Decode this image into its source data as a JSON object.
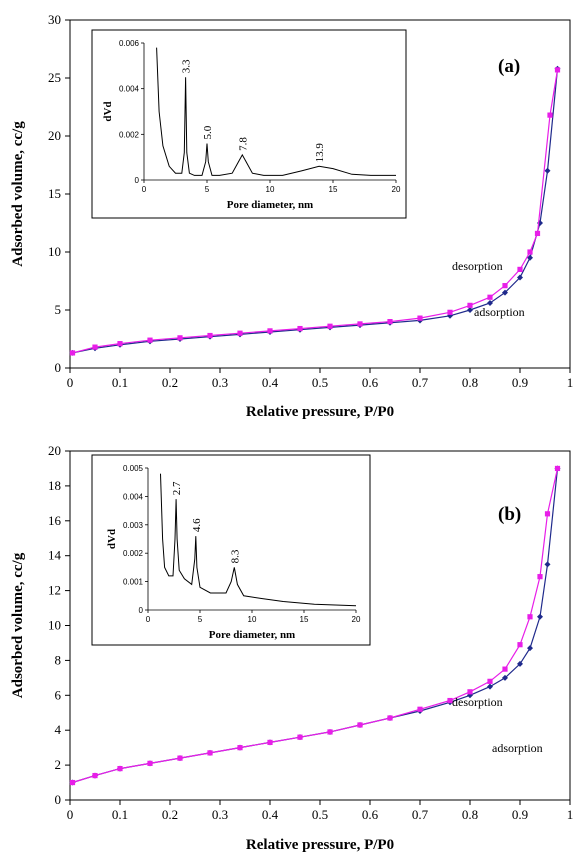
{
  "chart_data": [
    {
      "type": "line",
      "panel_label": "(a)",
      "xlabel": "Relative pressure, P/P0",
      "ylabel": "Adsorbed volume, cc/g",
      "xlim": [
        0,
        1.0
      ],
      "ylim": [
        0,
        30
      ],
      "xticks": [
        0,
        0.1,
        0.2,
        0.3,
        0.4,
        0.5,
        0.6,
        0.7,
        0.8,
        0.9,
        1
      ],
      "yticks": [
        0,
        5,
        10,
        15,
        20,
        25,
        30
      ],
      "grid": false,
      "series": [
        {
          "name": "adsorption",
          "color": "#1f2a8c",
          "x": [
            0.005,
            0.05,
            0.1,
            0.16,
            0.22,
            0.28,
            0.34,
            0.4,
            0.46,
            0.52,
            0.58,
            0.64,
            0.7,
            0.76,
            0.8,
            0.84,
            0.87,
            0.9,
            0.92,
            0.94,
            0.955,
            0.975
          ],
          "y": [
            1.3,
            1.7,
            2.0,
            2.3,
            2.5,
            2.7,
            2.9,
            3.1,
            3.3,
            3.5,
            3.7,
            3.9,
            4.1,
            4.5,
            5.0,
            5.6,
            6.5,
            7.8,
            9.5,
            12.5,
            17.0,
            25.8
          ]
        },
        {
          "name": "desorption",
          "color": "#e81ee8",
          "x": [
            0.005,
            0.05,
            0.1,
            0.16,
            0.22,
            0.28,
            0.34,
            0.4,
            0.46,
            0.52,
            0.58,
            0.64,
            0.7,
            0.76,
            0.8,
            0.84,
            0.87,
            0.9,
            0.92,
            0.935,
            0.96,
            0.975
          ],
          "y": [
            1.3,
            1.8,
            2.1,
            2.4,
            2.6,
            2.8,
            3.0,
            3.2,
            3.4,
            3.6,
            3.8,
            4.0,
            4.3,
            4.8,
            5.4,
            6.1,
            7.1,
            8.5,
            10.0,
            11.6,
            21.8,
            25.7
          ]
        }
      ],
      "annotations": [
        "desorption",
        "adsorption"
      ],
      "inset": {
        "type": "line",
        "xlabel": "Pore diameter, nm",
        "ylabel": "dVd",
        "xlim": [
          0,
          20
        ],
        "ylim": [
          0,
          0.006
        ],
        "xticks": [
          0,
          5,
          10,
          15,
          20
        ],
        "yticks": [
          0,
          0.002,
          0.004,
          0.006
        ],
        "ytick_labels": [
          "0",
          "0.002",
          "0.004",
          "0.006"
        ],
        "x": [
          1.0,
          1.2,
          1.5,
          2.0,
          2.5,
          3.0,
          3.2,
          3.3,
          3.4,
          3.6,
          4.0,
          4.6,
          4.9,
          5.0,
          5.1,
          5.4,
          6.0,
          7.0,
          7.5,
          7.8,
          8.1,
          8.6,
          9.5,
          11.0,
          12.5,
          13.9,
          15.0,
          16.5,
          18.0,
          20.0
        ],
        "y": [
          0.0058,
          0.003,
          0.0015,
          0.0006,
          0.0003,
          0.0003,
          0.0012,
          0.0045,
          0.0012,
          0.0003,
          0.0002,
          0.0002,
          0.0008,
          0.0016,
          0.0008,
          0.0002,
          0.0002,
          0.0003,
          0.0008,
          0.0011,
          0.0008,
          0.0003,
          0.0002,
          0.0002,
          0.0004,
          0.0006,
          0.0005,
          0.00025,
          0.0002,
          0.0002
        ],
        "peak_labels": [
          {
            "x": 3.3,
            "text": "3.3"
          },
          {
            "x": 5.0,
            "text": "5.0"
          },
          {
            "x": 7.8,
            "text": "7.8"
          },
          {
            "x": 13.9,
            "text": "13.9"
          }
        ]
      }
    },
    {
      "type": "line",
      "panel_label": "(b)",
      "xlabel": "Relative pressure, P/P0",
      "ylabel": "Adsorbed volume, cc/g",
      "xlim": [
        0,
        1.0
      ],
      "ylim": [
        0,
        20
      ],
      "xticks": [
        0,
        0.1,
        0.2,
        0.3,
        0.4,
        0.5,
        0.6,
        0.7,
        0.8,
        0.9,
        1
      ],
      "yticks": [
        0,
        2,
        4,
        6,
        8,
        10,
        12,
        14,
        16,
        18,
        20
      ],
      "grid": false,
      "series": [
        {
          "name": "adsorption",
          "color": "#1f2a8c",
          "x": [
            0.005,
            0.05,
            0.1,
            0.16,
            0.22,
            0.28,
            0.34,
            0.4,
            0.46,
            0.52,
            0.58,
            0.64,
            0.7,
            0.76,
            0.8,
            0.84,
            0.87,
            0.9,
            0.92,
            0.94,
            0.955,
            0.975
          ],
          "y": [
            1.0,
            1.4,
            1.8,
            2.1,
            2.4,
            2.7,
            3.0,
            3.3,
            3.6,
            3.9,
            4.3,
            4.7,
            5.1,
            5.6,
            6.0,
            6.5,
            7.0,
            7.8,
            8.7,
            10.5,
            13.5,
            19.0
          ]
        },
        {
          "name": "desorption",
          "color": "#e81ee8",
          "x": [
            0.005,
            0.05,
            0.1,
            0.16,
            0.22,
            0.28,
            0.34,
            0.4,
            0.46,
            0.52,
            0.58,
            0.64,
            0.7,
            0.76,
            0.8,
            0.84,
            0.87,
            0.9,
            0.92,
            0.94,
            0.955,
            0.975
          ],
          "y": [
            1.0,
            1.4,
            1.8,
            2.1,
            2.4,
            2.7,
            3.0,
            3.3,
            3.6,
            3.9,
            4.3,
            4.7,
            5.2,
            5.7,
            6.2,
            6.8,
            7.5,
            8.9,
            10.5,
            12.8,
            16.4,
            19.0
          ]
        }
      ],
      "annotations": [
        "desorption",
        "adsorption"
      ],
      "inset": {
        "type": "line",
        "xlabel": "Pore diameter, nm",
        "ylabel": "dVd",
        "xlim": [
          0,
          20
        ],
        "ylim": [
          0,
          0.005
        ],
        "xticks": [
          0,
          5,
          10,
          15,
          20
        ],
        "yticks": [
          0,
          0.001,
          0.002,
          0.003,
          0.004,
          0.005
        ],
        "ytick_labels": [
          "0",
          "0.001",
          "0.002",
          "0.003",
          "0.004",
          "0.005"
        ],
        "x": [
          1.2,
          1.4,
          1.6,
          2.0,
          2.4,
          2.6,
          2.7,
          2.8,
          3.0,
          3.5,
          4.2,
          4.5,
          4.6,
          4.7,
          5.0,
          6.0,
          7.5,
          8.0,
          8.3,
          8.6,
          9.2,
          11.0,
          13.0,
          16.0,
          20.0
        ],
        "y": [
          0.0048,
          0.0025,
          0.0015,
          0.0012,
          0.0012,
          0.0025,
          0.0039,
          0.0025,
          0.0014,
          0.0011,
          0.0009,
          0.0018,
          0.0026,
          0.0015,
          0.0008,
          0.0006,
          0.0006,
          0.001,
          0.0015,
          0.0009,
          0.0005,
          0.0004,
          0.0003,
          0.0002,
          0.00015
        ],
        "peak_labels": [
          {
            "x": 2.7,
            "text": "2.7"
          },
          {
            "x": 4.6,
            "text": "4.6"
          },
          {
            "x": 8.3,
            "text": "8.3"
          }
        ]
      }
    }
  ]
}
